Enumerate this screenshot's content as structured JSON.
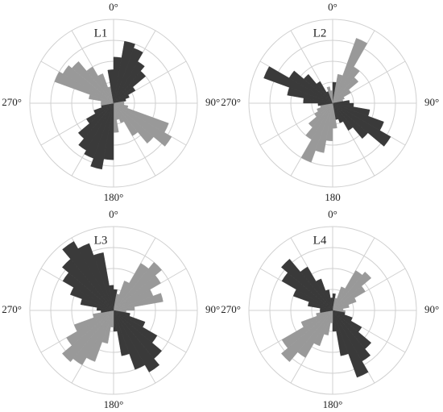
{
  "chart_data": [
    {
      "type": "rose",
      "title": "L1",
      "theta": [
        0,
        10,
        20,
        30,
        40,
        50,
        60,
        70,
        80,
        90,
        100,
        110,
        120,
        130,
        140,
        150,
        160,
        170,
        180,
        190,
        200,
        210,
        220,
        230,
        240,
        250,
        260,
        270,
        280,
        290,
        300,
        310,
        320,
        330,
        340,
        350
      ],
      "values": [
        2.2,
        3.0,
        2.8,
        2.3,
        2.0,
        1.2,
        0.8,
        0.6,
        0.5,
        0.5,
        0.7,
        2.8,
        3.2,
        2.5,
        1.8,
        1.0,
        0.8,
        1.4,
        2.7,
        3.2,
        2.8,
        2.6,
        2.2,
        1.5,
        1.0,
        0.6,
        0.6,
        0.6,
        1.2,
        3.0,
        2.8,
        2.6,
        2.0,
        1.5,
        0.8,
        1.6
      ],
      "colors": [
        "#3a3a3a",
        "#3a3a3a",
        "#3a3a3a",
        "#3a3a3a",
        "#3a3a3a",
        "#3a3a3a",
        "#3a3a3a",
        "#3a3a3a",
        "#999999",
        "#999999",
        "#999999",
        "#999999",
        "#999999",
        "#999999",
        "#999999",
        "#999999",
        "#999999",
        "#999999",
        "#3a3a3a",
        "#3a3a3a",
        "#3a3a3a",
        "#3a3a3a",
        "#3a3a3a",
        "#3a3a3a",
        "#3a3a3a",
        "#3a3a3a",
        "#999999",
        "#999999",
        "#999999",
        "#999999",
        "#999999",
        "#999999",
        "#999999",
        "#999999",
        "#999999",
        "#3a3a3a"
      ],
      "rlim": [
        0,
        4
      ],
      "rticks": [
        1,
        2,
        3,
        4
      ],
      "thetagrid": [
        0,
        30,
        60,
        90,
        120,
        150,
        180,
        210,
        240,
        270,
        300,
        330
      ],
      "thetaticks": [
        {
          "value": 0,
          "label": "0°"
        },
        {
          "value": 90,
          "label": "90°"
        },
        {
          "value": 180,
          "label": "180°"
        },
        {
          "value": 270,
          "label": "270°"
        }
      ]
    },
    {
      "type": "rose",
      "title": "L2",
      "theta": [
        0,
        10,
        20,
        30,
        40,
        50,
        60,
        70,
        80,
        90,
        100,
        110,
        120,
        130,
        140,
        150,
        160,
        170,
        180,
        190,
        200,
        210,
        220,
        230,
        240,
        250,
        260,
        270,
        280,
        290,
        300,
        310,
        320,
        330,
        340,
        350
      ],
      "values": [
        1.0,
        1.4,
        3.3,
        2.0,
        1.6,
        1.0,
        0.6,
        0.5,
        0.8,
        1.0,
        1.8,
        2.6,
        3.2,
        2.2,
        1.5,
        1.0,
        0.8,
        1.2,
        1.8,
        2.4,
        3.0,
        2.0,
        1.5,
        1.0,
        0.8,
        0.6,
        0.7,
        1.4,
        2.2,
        3.5,
        2.4,
        1.8,
        1.2,
        0.6,
        0.8,
        0.6
      ],
      "colors": [
        "#3a3a3a",
        "#999999",
        "#999999",
        "#999999",
        "#999999",
        "#999999",
        "#999999",
        "#999999",
        "#3a3a3a",
        "#3a3a3a",
        "#3a3a3a",
        "#3a3a3a",
        "#3a3a3a",
        "#3a3a3a",
        "#3a3a3a",
        "#3a3a3a",
        "#3a3a3a",
        "#999999",
        "#999999",
        "#999999",
        "#999999",
        "#999999",
        "#999999",
        "#999999",
        "#999999",
        "#999999",
        "#3a3a3a",
        "#3a3a3a",
        "#3a3a3a",
        "#3a3a3a",
        "#3a3a3a",
        "#3a3a3a",
        "#3a3a3a",
        "#3a3a3a",
        "#999999",
        "#999999"
      ],
      "rlim": [
        0,
        4
      ],
      "rticks": [
        1,
        2,
        3,
        4
      ],
      "thetagrid": [
        0,
        30,
        60,
        90,
        120,
        150,
        180,
        210,
        240,
        270,
        300,
        330
      ],
      "thetaticks": [
        {
          "value": 0,
          "label": "0°"
        },
        {
          "value": 90,
          "label": "90°"
        },
        180,
        {
          "value": 270,
          "label": "270°"
        }
      ]
    },
    {
      "type": "rose",
      "title": "L3",
      "theta": [
        0,
        10,
        20,
        30,
        40,
        50,
        60,
        70,
        80,
        90,
        100,
        110,
        120,
        130,
        140,
        150,
        160,
        170,
        180,
        190,
        200,
        210,
        220,
        230,
        240,
        250,
        260,
        270,
        280,
        290,
        300,
        310,
        320,
        330,
        340,
        350
      ],
      "values": [
        1.0,
        0.8,
        1.5,
        2.6,
        3.0,
        2.6,
        2.0,
        2.4,
        1.0,
        0.6,
        0.8,
        1.6,
        2.4,
        3.0,
        3.4,
        3.0,
        2.2,
        1.0,
        0.8,
        1.6,
        2.6,
        3.0,
        3.2,
        2.6,
        2.0,
        1.0,
        0.6,
        0.8,
        1.6,
        2.2,
        2.8,
        3.2,
        3.8,
        3.4,
        2.8,
        1.2
      ],
      "colors": [
        "#3a3a3a",
        "#999999",
        "#999999",
        "#999999",
        "#999999",
        "#999999",
        "#999999",
        "#999999",
        "#999999",
        "#999999",
        "#3a3a3a",
        "#3a3a3a",
        "#3a3a3a",
        "#3a3a3a",
        "#3a3a3a",
        "#3a3a3a",
        "#3a3a3a",
        "#3a3a3a",
        "#999999",
        "#999999",
        "#999999",
        "#999999",
        "#999999",
        "#999999",
        "#999999",
        "#999999",
        "#3a3a3a",
        "#3a3a3a",
        "#3a3a3a",
        "#3a3a3a",
        "#3a3a3a",
        "#3a3a3a",
        "#3a3a3a",
        "#3a3a3a",
        "#3a3a3a",
        "#3a3a3a"
      ],
      "rlim": [
        0,
        4
      ],
      "rticks": [
        1,
        2,
        3,
        4
      ],
      "thetagrid": [
        0,
        30,
        60,
        90,
        120,
        150,
        180,
        210,
        240,
        270,
        300,
        330
      ],
      "thetaticks": [
        {
          "value": 0,
          "label": "0°"
        },
        {
          "value": 90,
          "label": "90°"
        },
        {
          "value": 180,
          "label": "180°"
        },
        {
          "value": 270,
          "label": "270°"
        }
      ]
    },
    {
      "type": "rose",
      "title": "L4",
      "theta": [
        0,
        10,
        20,
        30,
        40,
        50,
        60,
        70,
        80,
        90,
        100,
        110,
        120,
        130,
        140,
        150,
        160,
        170,
        180,
        190,
        200,
        210,
        220,
        230,
        240,
        250,
        260,
        270,
        280,
        290,
        300,
        310,
        320,
        330,
        340,
        350
      ],
      "values": [
        0.8,
        0.6,
        1.2,
        2.2,
        2.4,
        1.8,
        1.2,
        0.8,
        0.5,
        0.6,
        0.6,
        1.0,
        1.6,
        2.4,
        2.8,
        3.4,
        2.2,
        1.0,
        0.6,
        1.2,
        1.8,
        2.6,
        3.2,
        2.8,
        1.6,
        0.8,
        0.6,
        0.6,
        1.2,
        2.0,
        2.8,
        3.2,
        2.4,
        1.6,
        1.0,
        0.6
      ],
      "colors": [
        "#3a3a3a",
        "#999999",
        "#999999",
        "#999999",
        "#999999",
        "#999999",
        "#999999",
        "#999999",
        "#999999",
        "#999999",
        "#3a3a3a",
        "#3a3a3a",
        "#3a3a3a",
        "#3a3a3a",
        "#3a3a3a",
        "#3a3a3a",
        "#3a3a3a",
        "#3a3a3a",
        "#999999",
        "#999999",
        "#999999",
        "#999999",
        "#999999",
        "#999999",
        "#999999",
        "#999999",
        "#3a3a3a",
        "#3a3a3a",
        "#3a3a3a",
        "#3a3a3a",
        "#3a3a3a",
        "#3a3a3a",
        "#3a3a3a",
        "#3a3a3a",
        "#3a3a3a",
        "#3a3a3a"
      ],
      "rlim": [
        0,
        4
      ],
      "rticks": [
        1,
        2,
        3,
        4
      ],
      "thetagrid": [
        0,
        30,
        60,
        90,
        120,
        150,
        180,
        210,
        240,
        270,
        300,
        330
      ],
      "thetaticks": [
        {
          "value": 0,
          "label": "0°"
        },
        {
          "value": 90,
          "label": "90°"
        },
        {
          "value": 180,
          "label": "180°"
        },
        {
          "value": 270,
          "label": "270°"
        }
      ]
    }
  ]
}
